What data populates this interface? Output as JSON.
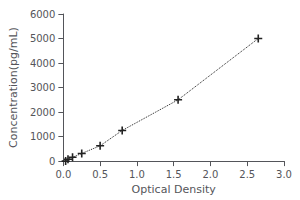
{
  "chart_data": {
    "type": "line",
    "x": [
      0.031,
      0.063,
      0.125,
      0.25,
      0.5,
      0.8,
      1.56,
      2.65
    ],
    "values": [
      0,
      78,
      156,
      313,
      625,
      1250,
      2500,
      5000
    ],
    "xlabel": "Optical Density",
    "ylabel": "Concentration(pg/mL)",
    "xlim": [
      0,
      3
    ],
    "ylim": [
      0,
      6000
    ],
    "xticks": [
      {
        "value": 0,
        "label": "0.0"
      },
      0.5,
      {
        "value": 1,
        "label": "1.0"
      },
      1.5,
      {
        "value": 2,
        "label": "2.0"
      },
      2.5,
      {
        "value": 3,
        "label": "3.0"
      }
    ],
    "yticks": [
      0,
      1000,
      2000,
      3000,
      4000,
      5000,
      6000
    ],
    "color": "#222222",
    "marker": "plus",
    "line_style": "dotted",
    "grid": false
  }
}
